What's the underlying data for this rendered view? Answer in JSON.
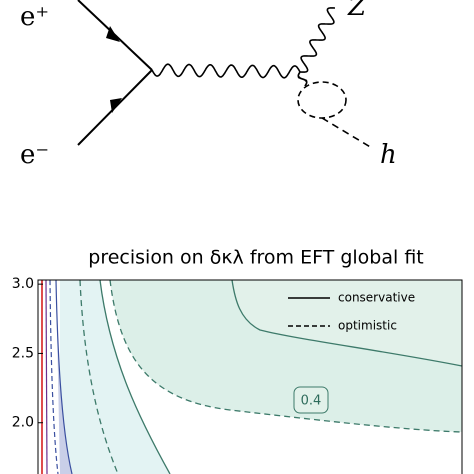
{
  "diagram": {
    "labels": {
      "positron": "e⁺",
      "electron": "e⁻",
      "z": "Z",
      "higgs": "h"
    }
  },
  "chart_data": {
    "type": "contour",
    "title": "precision on δκλ from EFT global fit",
    "ylim": [
      1.63,
      3.03
    ],
    "yticks": [
      {
        "value": 2.0,
        "label": "2.0"
      },
      {
        "value": 2.5,
        "label": "2.5"
      },
      {
        "value": 3.0,
        "label": "3.0"
      }
    ],
    "legend": {
      "position": "upper right",
      "entries": [
        "conservative",
        "optimistic"
      ]
    },
    "annotations": [
      "0.4"
    ]
  }
}
